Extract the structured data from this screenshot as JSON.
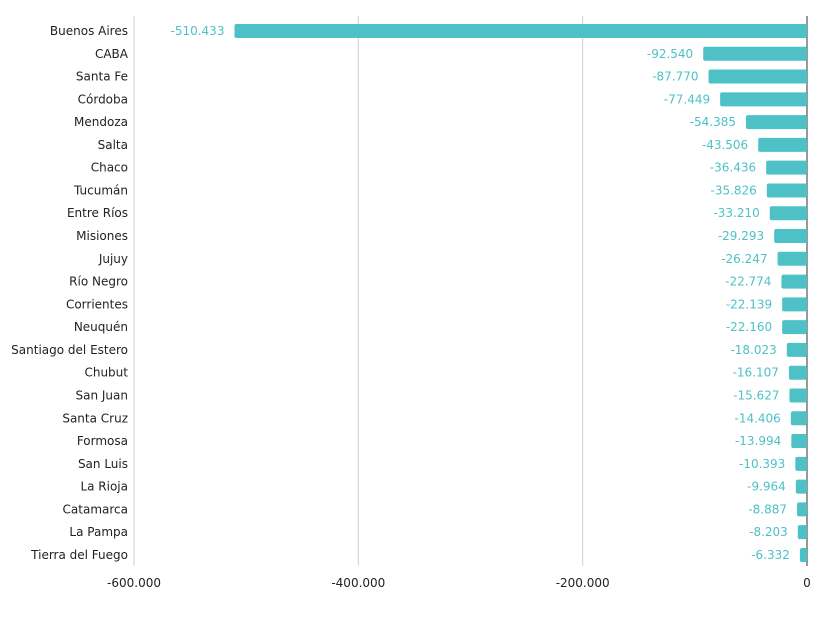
{
  "chart_data": {
    "type": "bar",
    "orientation": "horizontal",
    "categories": [
      "Buenos Aires",
      "CABA",
      "Santa Fe",
      "Córdoba",
      "Mendoza",
      "Salta",
      "Chaco",
      "Tucumán",
      "Entre Ríos",
      "Misiones",
      "Jujuy",
      "Río Negro",
      "Corrientes",
      "Neuquén",
      "Santiago del Estero",
      "Chubut",
      "San Juan",
      "Santa Cruz",
      "Formosa",
      "San Luis",
      "La Rioja",
      "Catamarca",
      "La Pampa",
      "Tierra del Fuego"
    ],
    "values": [
      -510433,
      -92540,
      -87770,
      -77449,
      -54385,
      -43506,
      -36436,
      -35826,
      -33210,
      -29293,
      -26247,
      -22774,
      -22139,
      -22160,
      -18023,
      -16107,
      -15627,
      -14406,
      -13994,
      -10393,
      -9964,
      -8887,
      -8203,
      -6332
    ],
    "value_labels": [
      "-510.433",
      "-92.540",
      "-87.770",
      "-77.449",
      "-54.385",
      "-43.506",
      "-36.436",
      "-35.826",
      "-33.210",
      "-29.293",
      "-26.247",
      "-22.774",
      "-22.139",
      "-22.160",
      "-18.023",
      "-16.107",
      "-15.627",
      "-14.406",
      "-13.994",
      "-10.393",
      "-9.964",
      "-8.887",
      "-8.203",
      "-6.332"
    ],
    "xlim": [
      -600000,
      0
    ],
    "xticks": [
      -600000,
      -400000,
      -200000,
      0
    ],
    "xtick_labels": [
      "-600.000",
      "-400.000",
      "-200.000",
      "0"
    ],
    "grid": true,
    "title": "",
    "xlabel": "",
    "ylabel": "",
    "bar_color": "#4ec1c7",
    "label_color": "#4ec1c7"
  }
}
